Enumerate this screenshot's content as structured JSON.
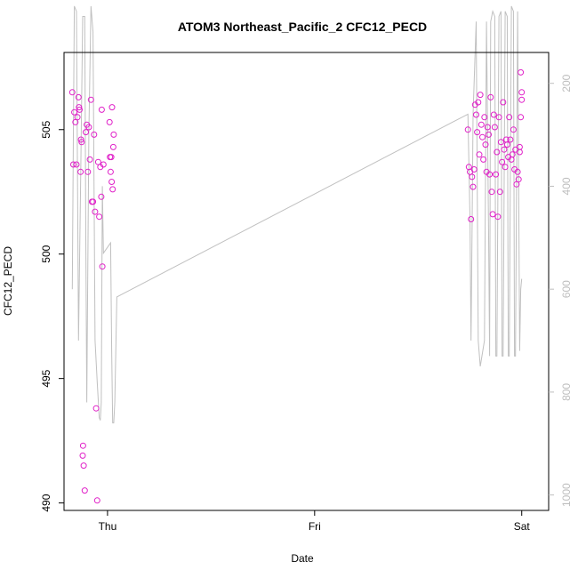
{
  "chart_data": {
    "type": "scatter",
    "title": "ATOM3 Northeast_Pacific_2 CFC12_PECD",
    "xlabel": "Date",
    "ylabel": "CFC12_PECD",
    "x_ticks": [
      {
        "label": "Thu",
        "value": 0.0
      },
      {
        "label": "Fri",
        "value": 1.0
      },
      {
        "label": "Sat",
        "value": 2.0
      }
    ],
    "xlim": [
      -0.21,
      2.13
    ],
    "ylim": [
      489.7,
      508.1
    ],
    "y_ticks": [
      490,
      495,
      500,
      505
    ],
    "y2label": "",
    "y2lim": [
      1030,
      140
    ],
    "y2_ticks": [
      200,
      400,
      600,
      800,
      1000
    ],
    "point_color": "#e020c8",
    "line_color": "#c0c0c0",
    "grid": false,
    "series": [
      {
        "kind": "points",
        "x": [
          -0.17,
          -0.165,
          -0.16,
          -0.155,
          -0.15,
          -0.145,
          -0.14,
          -0.138,
          -0.135,
          -0.13,
          -0.128,
          -0.125,
          -0.12,
          -0.118,
          -0.115,
          -0.11,
          -0.105,
          -0.1,
          -0.095,
          -0.09,
          -0.085,
          -0.08,
          -0.075,
          -0.07,
          -0.065,
          -0.06,
          -0.055,
          -0.05,
          -0.045,
          -0.04,
          -0.035,
          -0.03,
          -0.028,
          -0.025,
          -0.02,
          0.01,
          0.012,
          0.015,
          0.018,
          0.02,
          0.022,
          0.025,
          0.028,
          0.03,
          1.74,
          1.745,
          1.75,
          1.755,
          1.76,
          1.765,
          1.77,
          1.775,
          1.78,
          1.785,
          1.79,
          1.795,
          1.8,
          1.805,
          1.81,
          1.815,
          1.82,
          1.825,
          1.83,
          1.835,
          1.84,
          1.845,
          1.85,
          1.855,
          1.86,
          1.865,
          1.87,
          1.875,
          1.88,
          1.885,
          1.89,
          1.895,
          1.9,
          1.905,
          1.91,
          1.915,
          1.92,
          1.925,
          1.93,
          1.935,
          1.94,
          1.945,
          1.95,
          1.955,
          1.96,
          1.965,
          1.97,
          1.975,
          1.98,
          1.985,
          1.99,
          1.995,
          2.0,
          2.0,
          1.995,
          1.99
        ],
        "y": [
          506.5,
          503.6,
          505.7,
          505.3,
          503.6,
          505.5,
          506.3,
          505.9,
          505.8,
          503.3,
          504.6,
          504.5,
          491.9,
          492.3,
          491.5,
          490.5,
          504.9,
          505.2,
          503.3,
          505.1,
          503.8,
          506.2,
          502.1,
          502.1,
          504.8,
          501.7,
          493.8,
          490.1,
          503.7,
          501.5,
          503.5,
          502.3,
          505.8,
          499.5,
          503.6,
          505.3,
          503.9,
          503.3,
          503.9,
          502.9,
          505.9,
          502.6,
          504.3,
          504.8,
          505.0,
          503.5,
          503.3,
          501.4,
          503.1,
          502.7,
          503.4,
          506.0,
          505.6,
          504.9,
          506.1,
          504.0,
          506.4,
          505.2,
          504.7,
          503.8,
          505.5,
          504.4,
          503.3,
          505.1,
          504.8,
          503.2,
          506.3,
          502.5,
          501.6,
          505.6,
          505.1,
          503.2,
          504.1,
          501.5,
          505.5,
          502.5,
          504.5,
          503.7,
          506.1,
          504.2,
          503.5,
          504.6,
          504.4,
          503.9,
          505.5,
          504.6,
          503.8,
          504.0,
          505.0,
          503.4,
          504.2,
          502.8,
          503.3,
          503.0,
          504.1,
          505.5,
          506.5,
          506.2,
          507.3,
          504.3
        ],
        "name": ""
      },
      {
        "kind": "line",
        "x": [
          -0.17,
          -0.165,
          -0.16,
          -0.15,
          -0.14,
          -0.13,
          -0.12,
          -0.11,
          -0.105,
          -0.1,
          -0.09,
          -0.08,
          -0.07,
          -0.06,
          -0.05,
          -0.04,
          -0.035,
          -0.03,
          -0.025,
          -0.02,
          0.015,
          0.02,
          0.025,
          0.03,
          0.035,
          0.045,
          1.74,
          1.75,
          1.755,
          1.76,
          1.765,
          1.78,
          1.79,
          1.8,
          1.82,
          1.83,
          1.84,
          1.845,
          1.85,
          1.86,
          1.87,
          1.875,
          1.88,
          1.89,
          1.9,
          1.905,
          1.91,
          1.92,
          1.93,
          1.935,
          1.94,
          1.95,
          1.96,
          1.965,
          1.97,
          1.98,
          1.99,
          1.995,
          2.0
        ],
        "y2": [
          600,
          300,
          50,
          60,
          700,
          400,
          70,
          70,
          500,
          820,
          300,
          50,
          100,
          700,
          780,
          850,
          855,
          820,
          400,
          530,
          510,
          720,
          860,
          860,
          820,
          615,
          260,
          460,
          700,
          500,
          260,
          80,
          700,
          750,
          700,
          80,
          500,
          730,
          80,
          60,
          70,
          730,
          730,
          70,
          60,
          730,
          730,
          60,
          70,
          730,
          730,
          50,
          60,
          730,
          730,
          60,
          720,
          600,
          580
        ],
        "name": ""
      }
    ]
  }
}
